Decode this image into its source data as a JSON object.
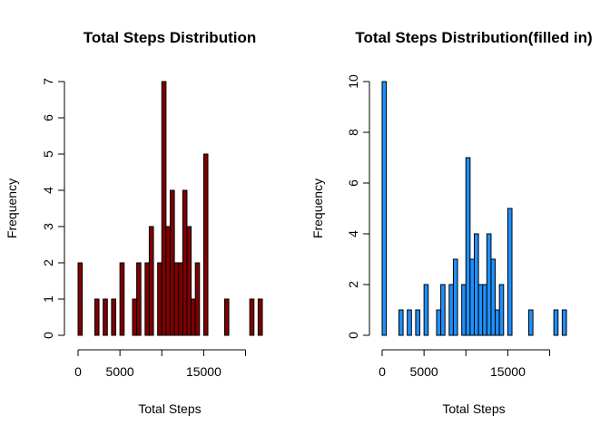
{
  "chart_data": [
    {
      "type": "bar",
      "title": "Total Steps Distribution",
      "xlabel": "Total Steps",
      "ylabel": "Frequency",
      "fill_color": "#800000",
      "xlim": [
        0,
        22000
      ],
      "ylim": [
        0,
        7
      ],
      "x_ticks": [
        0,
        5000,
        15000
      ],
      "x_tick_values": [
        0,
        5000,
        10000,
        15000,
        20000
      ],
      "y_ticks": [
        0,
        1,
        2,
        3,
        4,
        5,
        6,
        7
      ],
      "bin_width": 500,
      "bins": [
        {
          "x": 0,
          "count": 2
        },
        {
          "x": 2000,
          "count": 1
        },
        {
          "x": 2500,
          "count": 0
        },
        {
          "x": 3000,
          "count": 1
        },
        {
          "x": 4000,
          "count": 1
        },
        {
          "x": 5000,
          "count": 2
        },
        {
          "x": 6500,
          "count": 1
        },
        {
          "x": 7000,
          "count": 2
        },
        {
          "x": 8000,
          "count": 2
        },
        {
          "x": 8500,
          "count": 3
        },
        {
          "x": 9500,
          "count": 2
        },
        {
          "x": 10000,
          "count": 7
        },
        {
          "x": 10500,
          "count": 3
        },
        {
          "x": 11000,
          "count": 4
        },
        {
          "x": 11500,
          "count": 2
        },
        {
          "x": 12000,
          "count": 2
        },
        {
          "x": 12500,
          "count": 4
        },
        {
          "x": 13000,
          "count": 3
        },
        {
          "x": 13500,
          "count": 1
        },
        {
          "x": 14000,
          "count": 2
        },
        {
          "x": 15000,
          "count": 5
        },
        {
          "x": 17500,
          "count": 1
        },
        {
          "x": 20500,
          "count": 1
        },
        {
          "x": 21500,
          "count": 1
        }
      ]
    },
    {
      "type": "bar",
      "title": "Total Steps Distribution(filled in)",
      "xlabel": "Total Steps",
      "ylabel": "Frequency",
      "fill_color": "#1E90FF",
      "xlim": [
        0,
        22000
      ],
      "ylim": [
        0,
        10
      ],
      "x_ticks": [
        0,
        5000,
        15000
      ],
      "x_tick_values": [
        0,
        5000,
        10000,
        15000,
        20000
      ],
      "y_ticks": [
        0,
        2,
        4,
        6,
        8,
        10
      ],
      "bin_width": 500,
      "bins": [
        {
          "x": 0,
          "count": 10
        },
        {
          "x": 2000,
          "count": 1
        },
        {
          "x": 3000,
          "count": 1
        },
        {
          "x": 4000,
          "count": 1
        },
        {
          "x": 5000,
          "count": 2
        },
        {
          "x": 6500,
          "count": 1
        },
        {
          "x": 7000,
          "count": 2
        },
        {
          "x": 8000,
          "count": 2
        },
        {
          "x": 8500,
          "count": 3
        },
        {
          "x": 9500,
          "count": 2
        },
        {
          "x": 10000,
          "count": 7
        },
        {
          "x": 10500,
          "count": 3
        },
        {
          "x": 11000,
          "count": 4
        },
        {
          "x": 11500,
          "count": 2
        },
        {
          "x": 12000,
          "count": 2
        },
        {
          "x": 12500,
          "count": 4
        },
        {
          "x": 13000,
          "count": 3
        },
        {
          "x": 13500,
          "count": 1
        },
        {
          "x": 14000,
          "count": 2
        },
        {
          "x": 15000,
          "count": 5
        },
        {
          "x": 17500,
          "count": 1
        },
        {
          "x": 20500,
          "count": 1
        },
        {
          "x": 21500,
          "count": 1
        }
      ]
    }
  ]
}
